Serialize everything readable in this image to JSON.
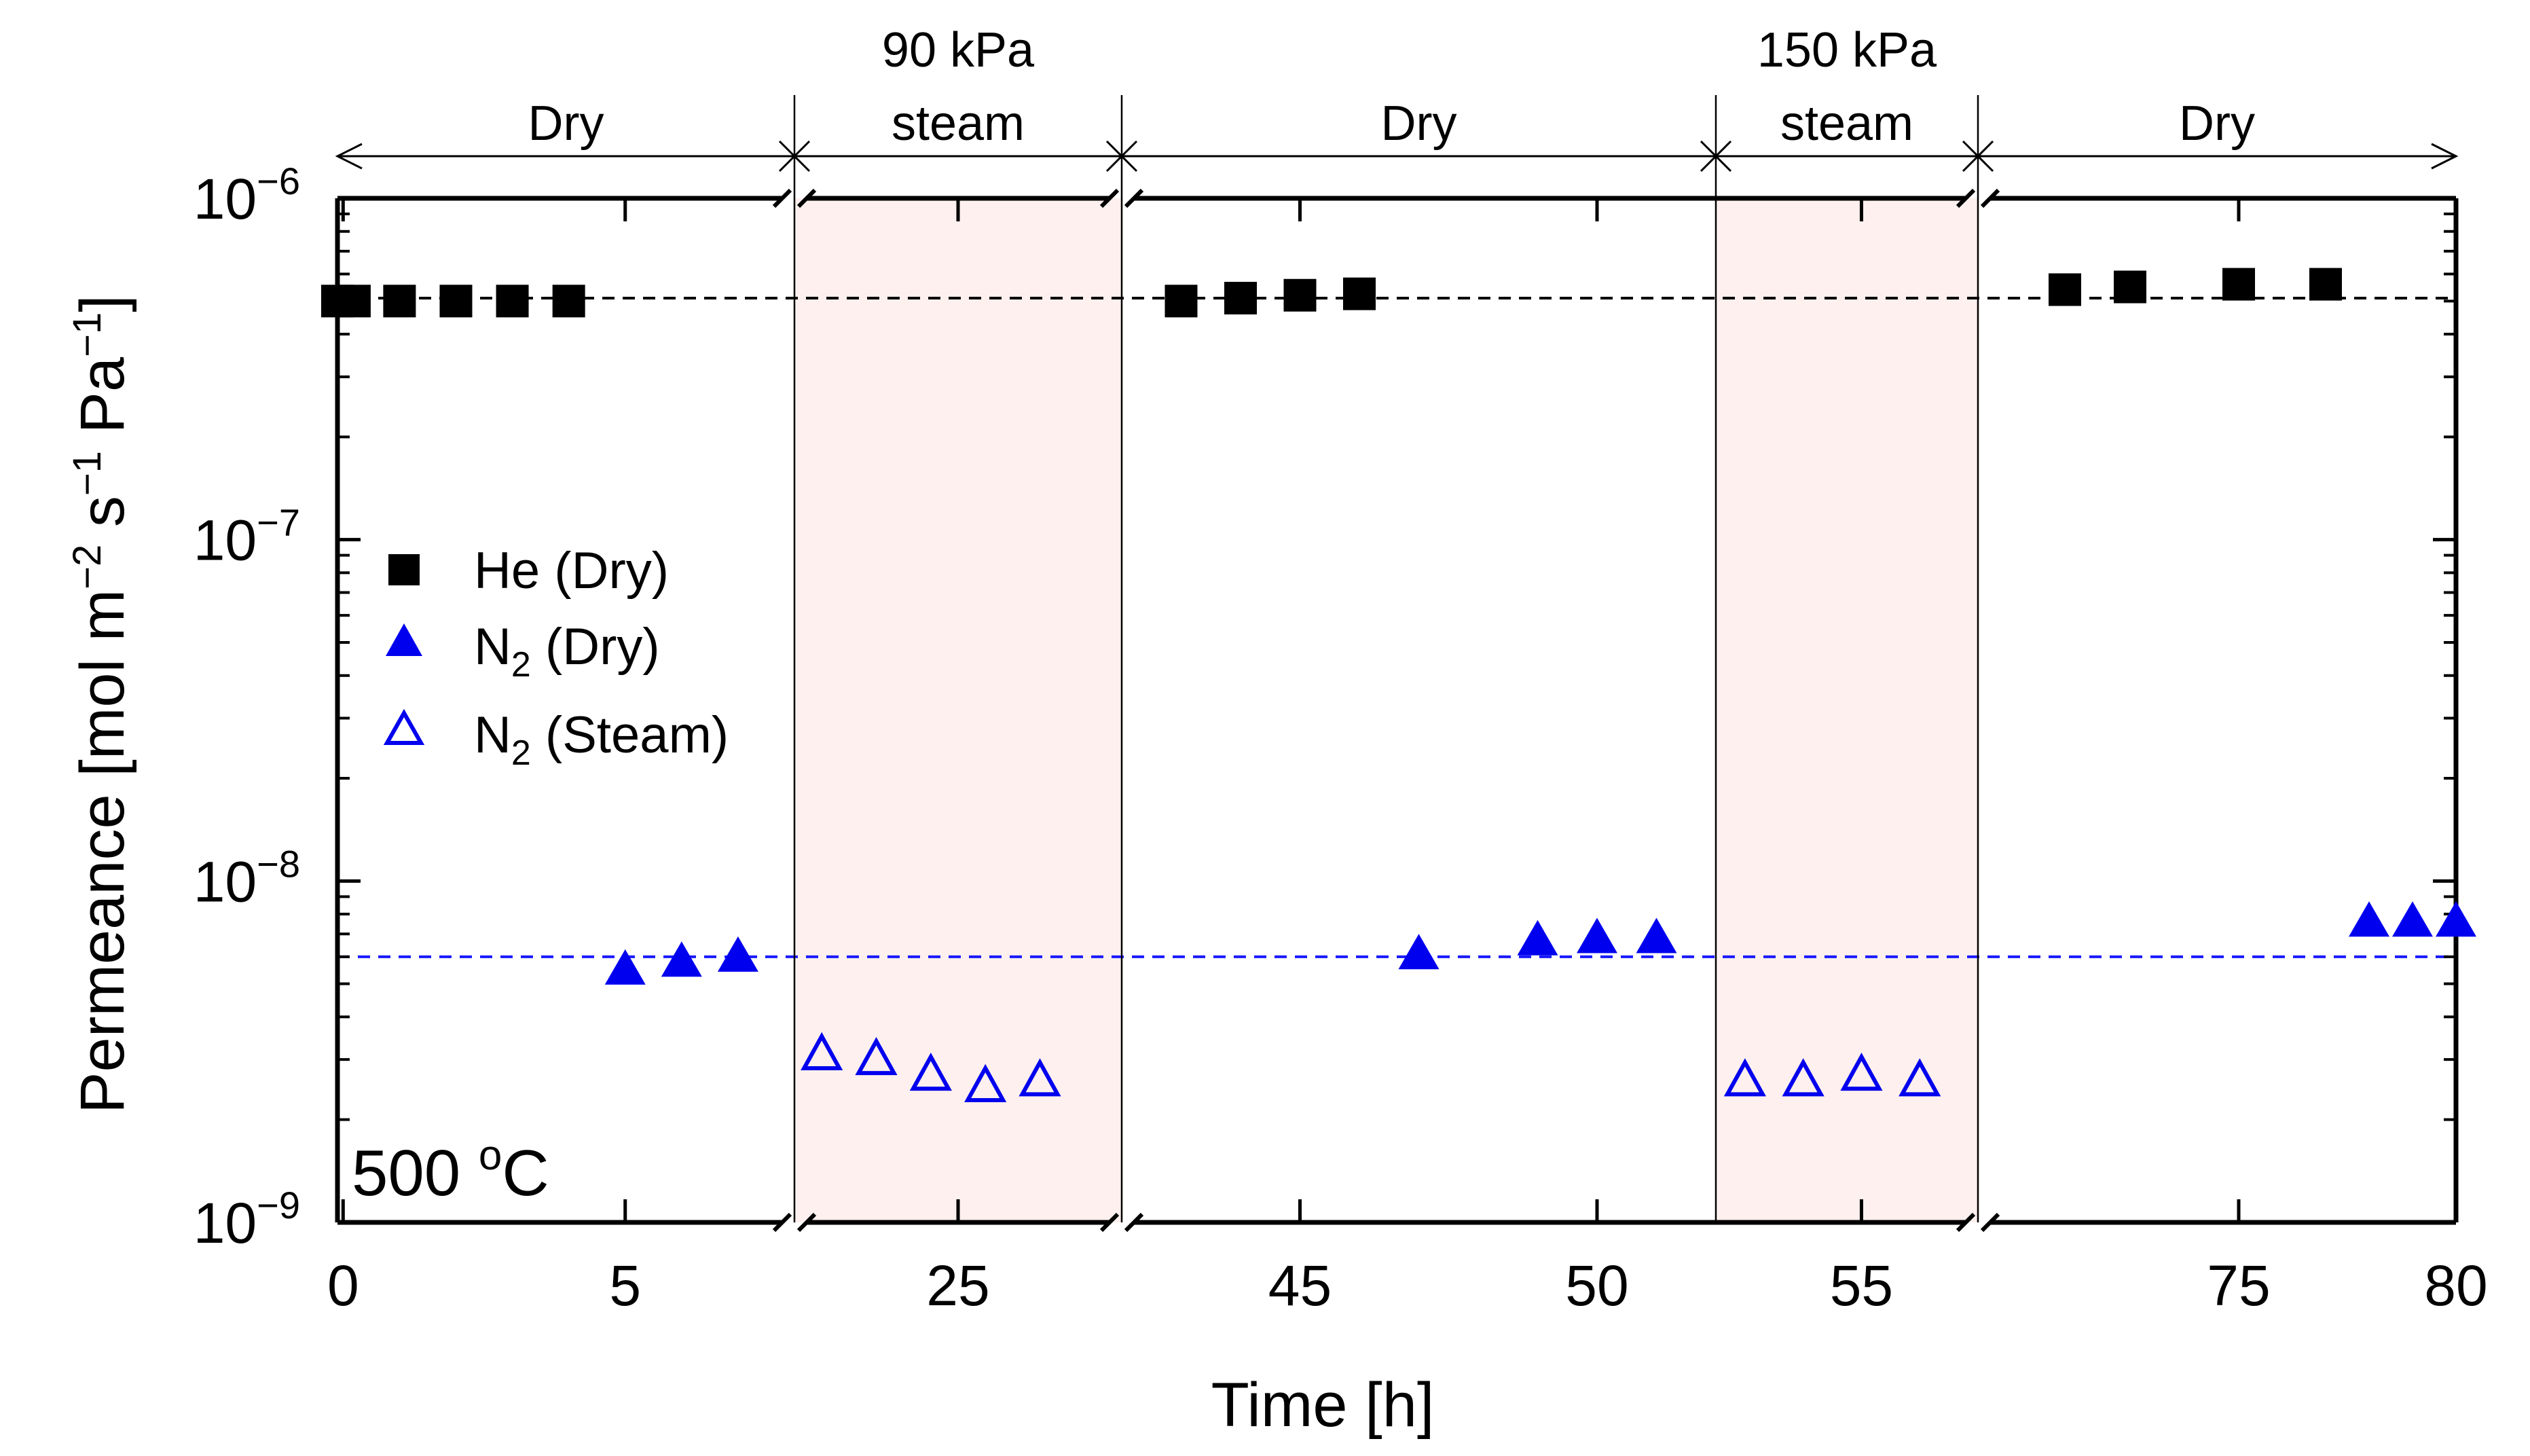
{
  "chart_data": {
    "type": "scatter",
    "xlabel": "Time [h]",
    "ylabel": "Permeance [mol m",
    "ylabel_parts": {
      "p1": "Permeance [mol m",
      "s1": "−2",
      "p2": " s",
      "s2": "−1",
      "p3": " Pa",
      "s3": "−1",
      "p4": "]"
    },
    "yscale": "log",
    "ylim": [
      1e-09,
      1e-06
    ],
    "yticks": [
      {
        "base": "10",
        "exp": "−9",
        "value": 1e-09
      },
      {
        "base": "10",
        "exp": "−8",
        "value": 1e-08
      },
      {
        "base": "10",
        "exp": "−7",
        "value": 1e-07
      },
      {
        "base": "10",
        "exp": "−6",
        "value": 1e-06
      }
    ],
    "x_axis_note": "broken axis with five segments",
    "segments": [
      {
        "label": "Dry",
        "xmin": -0.1,
        "xmax": 8.0,
        "ticks": [
          0,
          5
        ],
        "shaded": false
      },
      {
        "label_line1": "90 kPa",
        "label_line2": "steam",
        "xmin": 19.0,
        "xmax": 31.0,
        "ticks": [
          25
        ],
        "shaded": true
      },
      {
        "label": "Dry",
        "xmin": 42.0,
        "xmax": 52.0,
        "ticks": [
          45,
          50
        ],
        "shaded": false
      },
      {
        "label_line1": "150 kPa",
        "label_line2": "steam",
        "xmin": 52.5,
        "xmax": 57.0,
        "ticks": [
          55
        ],
        "shaded": true
      },
      {
        "label": "Dry",
        "xmin": 69.0,
        "xmax": 80.0,
        "ticks": [
          75,
          80
        ],
        "shaded": false
      }
    ],
    "reference_lines": [
      {
        "name": "He dry level",
        "y": 5.1e-07,
        "color": "#000000"
      },
      {
        "name": "N2 dry level",
        "y": 6e-09,
        "color": "#1a1aff"
      }
    ],
    "legend_position": "center-left",
    "annotation": {
      "text": "500 ",
      "sup": "o",
      "tail": "C"
    },
    "series": [
      {
        "name": "He (Dry)",
        "legend_main": "He (Dry)",
        "marker": "square",
        "color": "#000000",
        "points": [
          [
            -0.1,
            5e-07
          ],
          [
            0.2,
            5e-07
          ],
          [
            1.0,
            5e-07
          ],
          [
            2.0,
            5e-07
          ],
          [
            3.0,
            5e-07
          ],
          [
            4.0,
            5e-07
          ],
          [
            43.0,
            5e-07
          ],
          [
            44.0,
            5.1e-07
          ],
          [
            45.0,
            5.2e-07
          ],
          [
            46.0,
            5.25e-07
          ],
          [
            71.0,
            5.4e-07
          ],
          [
            72.5,
            5.5e-07
          ],
          [
            75.0,
            5.6e-07
          ],
          [
            77.0,
            5.6e-07
          ]
        ]
      },
      {
        "name": "N2 (Dry)",
        "legend_main": "N",
        "legend_sub": "2",
        "legend_tail": " (Dry)",
        "marker": "triangle-filled",
        "color": "#0000ee",
        "points": [
          [
            5.0,
            5.5e-09
          ],
          [
            6.0,
            5.8e-09
          ],
          [
            7.0,
            6e-09
          ],
          [
            47.0,
            6.1e-09
          ],
          [
            49.0,
            6.7e-09
          ],
          [
            50.0,
            6.8e-09
          ],
          [
            51.0,
            6.8e-09
          ],
          [
            78.0,
            7.6e-09
          ],
          [
            79.0,
            7.6e-09
          ],
          [
            80.0,
            7.6e-09
          ]
        ]
      },
      {
        "name": "N2 (Steam)",
        "legend_main": "N",
        "legend_sub": "2",
        "legend_tail": " (Steam)",
        "marker": "triangle-open",
        "color": "#0000ee",
        "points": [
          [
            20.0,
            3.1e-09
          ],
          [
            22.0,
            3e-09
          ],
          [
            24.0,
            2.7e-09
          ],
          [
            26.0,
            2.5e-09
          ],
          [
            28.0,
            2.6e-09
          ],
          [
            53.0,
            2.6e-09
          ],
          [
            54.0,
            2.6e-09
          ],
          [
            55.0,
            2.7e-09
          ],
          [
            56.0,
            2.6e-09
          ]
        ]
      }
    ]
  }
}
